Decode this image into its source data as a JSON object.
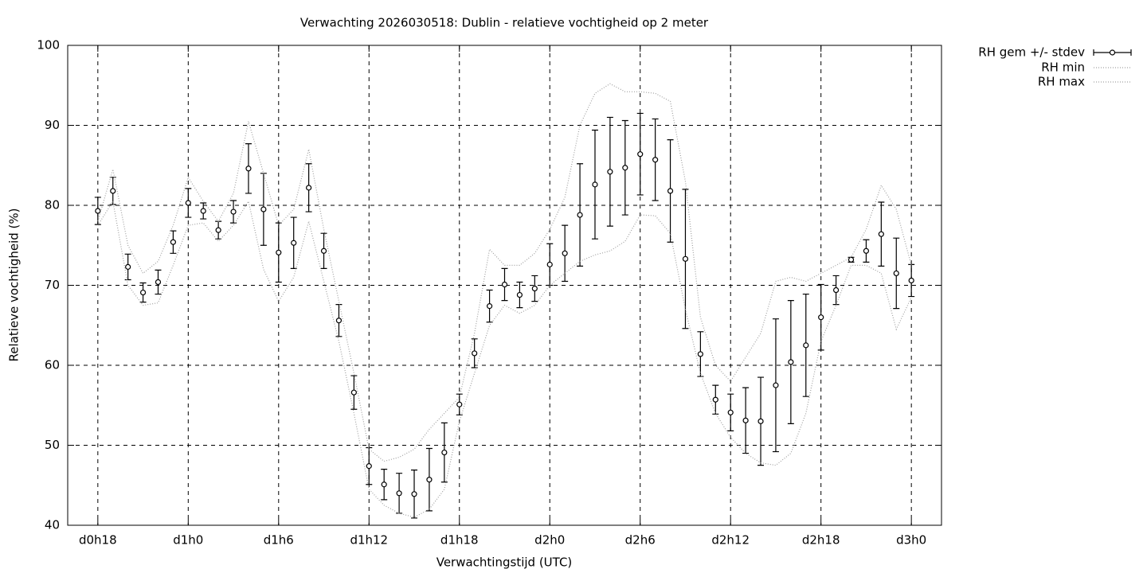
{
  "chart_data": {
    "type": "line",
    "title": "Verwachting 2026030518: Dublin - relatieve vochtigheid op 2 meter",
    "x_label": "Verwachtingstijd (UTC)",
    "y_label": "Relatieve vochtigheid (%)",
    "x": [
      18,
      19,
      20,
      21,
      22,
      23,
      24,
      25,
      26,
      27,
      28,
      29,
      30,
      31,
      32,
      33,
      34,
      35,
      36,
      37,
      38,
      39,
      40,
      41,
      42,
      43,
      44,
      45,
      46,
      47,
      48,
      49,
      50,
      51,
      52,
      53,
      54,
      55,
      56,
      57,
      58,
      59,
      60,
      61,
      62,
      63,
      64,
      65,
      66,
      67,
      68,
      69,
      70,
      71,
      72
    ],
    "series": [
      {
        "name": "RH gem +/- stdev",
        "color": "#000000",
        "values": [
          79.3,
          81.8,
          72.3,
          69.1,
          70.4,
          75.4,
          80.3,
          79.3,
          76.9,
          79.2,
          84.6,
          79.5,
          74.1,
          75.3,
          82.2,
          74.3,
          65.6,
          56.6,
          47.4,
          45.1,
          44.0,
          43.9,
          45.7,
          49.1,
          55.1,
          61.5,
          67.4,
          70.1,
          68.8,
          69.6,
          72.6,
          74.0,
          78.8,
          82.6,
          84.2,
          84.7,
          86.4,
          85.7,
          81.8,
          73.3,
          61.4,
          55.7,
          54.1,
          53.1,
          53.0,
          57.5,
          60.4,
          62.5,
          66.0,
          69.4,
          73.2,
          74.3,
          76.4,
          71.5,
          70.6
        ],
        "errors": [
          1.7,
          1.7,
          1.6,
          1.2,
          1.5,
          1.4,
          1.8,
          1.0,
          1.1,
          1.4,
          3.1,
          4.5,
          3.7,
          3.2,
          3.0,
          2.2,
          2.0,
          2.1,
          2.3,
          1.9,
          2.5,
          3.0,
          3.9,
          3.7,
          1.3,
          1.8,
          2.0,
          2.0,
          1.6,
          1.6,
          2.6,
          3.5,
          6.4,
          6.8,
          6.8,
          5.9,
          5.1,
          5.1,
          6.4,
          8.7,
          2.8,
          1.8,
          2.3,
          4.1,
          5.5,
          8.3,
          7.7,
          6.4,
          4.1,
          1.8,
          0.3,
          1.4,
          4.0,
          4.4,
          2.0
        ]
      },
      {
        "name": "RH min",
        "color": "#a0a0a0",
        "values": [
          77.5,
          80.5,
          70,
          67.5,
          67.8,
          72.5,
          77.5,
          77.8,
          75.5,
          77.5,
          80.5,
          72,
          68,
          71,
          78,
          70.5,
          63,
          54,
          44.5,
          42.5,
          41.5,
          41,
          42,
          44.5,
          53,
          59,
          65,
          67.5,
          66.5,
          67.5,
          70,
          71.5,
          73,
          73.8,
          74.3,
          75.5,
          78.8,
          78.7,
          76.5,
          67,
          59,
          54,
          51,
          49,
          47.8,
          47.5,
          49,
          54,
          63,
          67.5,
          72.5,
          72.5,
          71.5,
          64.5,
          68.5
        ]
      },
      {
        "name": "RH max",
        "color": "#a0a0a0",
        "values": [
          78,
          84.5,
          75,
          71.5,
          73,
          77.5,
          83.5,
          80.5,
          78,
          81.5,
          90.5,
          84,
          77.5,
          79.5,
          87,
          77,
          68,
          59,
          49.5,
          48,
          48.5,
          49.5,
          52,
          54,
          56,
          64,
          74.5,
          72.5,
          72.5,
          74,
          77,
          81,
          90,
          94,
          95.2,
          94.2,
          94.2,
          94,
          93,
          83,
          66,
          60,
          58,
          61,
          64,
          70.5,
          71,
          70.5,
          71.5,
          72.5,
          73.5,
          77,
          82.5,
          79.5,
          72.5
        ]
      }
    ],
    "xlim": [
      16,
      74
    ],
    "xticks": [
      {
        "value": 18,
        "label": "d0h18"
      },
      {
        "value": 24,
        "label": "d1h0"
      },
      {
        "value": 30,
        "label": "d1h6"
      },
      {
        "value": 36,
        "label": "d1h12"
      },
      {
        "value": 42,
        "label": "d1h18"
      },
      {
        "value": 48,
        "label": "d2h0"
      },
      {
        "value": 54,
        "label": "d2h6"
      },
      {
        "value": 60,
        "label": "d2h12"
      },
      {
        "value": 66,
        "label": "d2h18"
      },
      {
        "value": 72,
        "label": "d3h0"
      }
    ],
    "ylim": [
      40,
      100
    ],
    "yticks": [
      40,
      50,
      60,
      70,
      80,
      90,
      100
    ],
    "grid": true,
    "legend": "outside-top-right"
  }
}
